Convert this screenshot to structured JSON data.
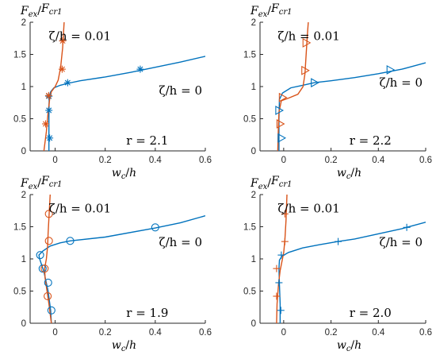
{
  "colors": {
    "blue": "#0072BD",
    "orange": "#D95319",
    "axis": "#262626"
  },
  "chart_data": [
    {
      "type": "line",
      "xlabel": "w_c/h",
      "ylabel": "F_ex/F_cr1",
      "xlim": [
        -0.1,
        0.6
      ],
      "ylim": [
        0,
        2
      ],
      "xticks": [
        0,
        0.2,
        0.4,
        0.6
      ],
      "yticks": [
        0,
        0.5,
        1,
        1.5,
        2
      ],
      "xtick_labels": [
        "0",
        "0.2",
        "0.4",
        "0.6"
      ],
      "ytick_labels": [
        "0",
        "0.5",
        "1",
        "1.5",
        "2"
      ],
      "marker": "asterisk",
      "annotation_r": "r = 2.1",
      "label_blue": "ζ/h = 0",
      "label_orange": "ζ/h = 0.01",
      "series": [
        {
          "color_key": "blue",
          "line": [
            [
              -0.025,
              0
            ],
            [
              -0.025,
              0.5
            ],
            [
              -0.024,
              0.8
            ],
            [
              -0.018,
              0.92
            ],
            [
              -0.005,
              0.98
            ],
            [
              0.02,
              1.02
            ],
            [
              0.05,
              1.05
            ],
            [
              0.1,
              1.09
            ],
            [
              0.2,
              1.15
            ],
            [
              0.3,
              1.22
            ],
            [
              0.4,
              1.3
            ],
            [
              0.5,
              1.38
            ],
            [
              0.6,
              1.47
            ]
          ],
          "markers": [
            [
              -0.022,
              0.2
            ],
            [
              -0.025,
              0.63
            ],
            [
              -0.025,
              0.85
            ],
            [
              0.05,
              1.06
            ],
            [
              0.34,
              1.27
            ]
          ]
        },
        {
          "color_key": "orange",
          "line": [
            [
              -0.045,
              0
            ],
            [
              -0.035,
              0.3
            ],
            [
              -0.028,
              0.6
            ],
            [
              -0.022,
              0.8
            ],
            [
              -0.015,
              0.92
            ],
            [
              0,
              1.0
            ],
            [
              0.012,
              1.1
            ],
            [
              0.022,
              1.3
            ],
            [
              0.03,
              1.6
            ],
            [
              0.036,
              2.0
            ]
          ],
          "markers": [
            [
              -0.038,
              0.42
            ],
            [
              -0.026,
              0.86
            ],
            [
              0.028,
              1.27
            ],
            [
              0.03,
              1.71
            ]
          ]
        }
      ]
    },
    {
      "type": "line",
      "xlabel": "w_c/h",
      "ylabel": "F_ex/F_cr1",
      "xlim": [
        -0.1,
        0.6
      ],
      "ylim": [
        0,
        2
      ],
      "xticks": [
        0,
        0.2,
        0.4,
        0.6
      ],
      "yticks": [
        0,
        0.5,
        1,
        1.5,
        2
      ],
      "xtick_labels": [
        "0",
        "0.2",
        "0.4",
        "0.6"
      ],
      "ytick_labels": [
        "0",
        "0.5",
        "1",
        "1.5",
        "2"
      ],
      "marker": "triangle-right",
      "annotation_r": "r = 2.2",
      "label_blue": "ζ/h = 0",
      "label_orange": "ζ/h = 0.01",
      "series": [
        {
          "color_key": "blue",
          "line": [
            [
              -0.02,
              0
            ],
            [
              -0.02,
              0.5
            ],
            [
              -0.018,
              0.8
            ],
            [
              -0.005,
              0.9
            ],
            [
              0.03,
              0.98
            ],
            [
              0.08,
              1.02
            ],
            [
              0.13,
              1.06
            ],
            [
              0.2,
              1.09
            ],
            [
              0.3,
              1.14
            ],
            [
              0.4,
              1.2
            ],
            [
              0.5,
              1.27
            ],
            [
              0.6,
              1.37
            ]
          ],
          "markers": [
            [
              -0.01,
              0.2
            ],
            [
              -0.02,
              0.63
            ],
            [
              0.13,
              1.06
            ],
            [
              0.45,
              1.26
            ]
          ]
        },
        {
          "color_key": "orange",
          "line": [
            [
              -0.025,
              0
            ],
            [
              -0.023,
              0.3
            ],
            [
              -0.02,
              0.6
            ],
            [
              -0.01,
              0.78
            ],
            [
              0.02,
              0.82
            ],
            [
              0.06,
              0.88
            ],
            [
              0.082,
              1.0
            ],
            [
              0.09,
              1.2
            ],
            [
              0.095,
              1.5
            ],
            [
              0.1,
              1.8
            ],
            [
              0.104,
              2.0
            ]
          ],
          "markers": [
            [
              -0.015,
              0.42
            ],
            [
              -0.005,
              0.83
            ],
            [
              0.09,
              1.25
            ],
            [
              0.095,
              1.68
            ]
          ]
        }
      ]
    },
    {
      "type": "line",
      "xlabel": "w_c/h",
      "ylabel": "F_ex/F_cr1",
      "xlim": [
        -0.1,
        0.6
      ],
      "ylim": [
        0,
        2
      ],
      "xticks": [
        0,
        0.2,
        0.4,
        0.6
      ],
      "yticks": [
        0,
        0.5,
        1,
        1.5,
        2
      ],
      "xtick_labels": [
        "0",
        "0.2",
        "0.4",
        "0.6"
      ],
      "ytick_labels": [
        "0",
        "0.5",
        "1",
        "1.5",
        "2"
      ],
      "marker": "circle",
      "annotation_r": "r = 1.9",
      "label_blue": "ζ/h = 0",
      "label_orange": "ζ/h = 0.01",
      "series": [
        {
          "color_key": "blue",
          "line": [
            [
              -0.015,
              0
            ],
            [
              -0.018,
              0.2
            ],
            [
              -0.028,
              0.5
            ],
            [
              -0.045,
              0.8
            ],
            [
              -0.062,
              1.0
            ],
            [
              -0.065,
              1.06
            ],
            [
              -0.05,
              1.12
            ],
            [
              -0.02,
              1.2
            ],
            [
              0.02,
              1.25
            ],
            [
              0.06,
              1.28
            ],
            [
              0.2,
              1.34
            ],
            [
              0.4,
              1.48
            ],
            [
              0.5,
              1.56
            ],
            [
              0.6,
              1.67
            ]
          ],
          "markers": [
            [
              -0.015,
              0.2
            ],
            [
              -0.028,
              0.63
            ],
            [
              -0.05,
              0.85
            ],
            [
              -0.06,
              1.06
            ],
            [
              0.06,
              1.28
            ],
            [
              0.4,
              1.49
            ]
          ]
        },
        {
          "color_key": "orange",
          "line": [
            [
              -0.015,
              0
            ],
            [
              -0.025,
              0.3
            ],
            [
              -0.04,
              0.7
            ],
            [
              -0.042,
              0.85
            ],
            [
              -0.035,
              1.0
            ],
            [
              -0.03,
              1.2
            ],
            [
              -0.028,
              1.4
            ],
            [
              -0.024,
              1.7
            ],
            [
              -0.02,
              2.0
            ]
          ],
          "markers": [
            [
              -0.03,
              0.42
            ],
            [
              -0.042,
              0.85
            ],
            [
              -0.025,
              1.28
            ],
            [
              -0.025,
              1.7
            ]
          ]
        }
      ]
    },
    {
      "type": "line",
      "xlabel": "w_c/h",
      "ylabel": "F_ex/F_cr1",
      "xlim": [
        -0.1,
        0.6
      ],
      "ylim": [
        0,
        2
      ],
      "xticks": [
        0,
        0.2,
        0.4,
        0.6
      ],
      "yticks": [
        0,
        0.5,
        1,
        1.5,
        2
      ],
      "xtick_labels": [
        "0",
        "0.2",
        "0.4",
        "0.6"
      ],
      "ytick_labels": [
        "0",
        "0.5",
        "1",
        "1.5",
        "2"
      ],
      "marker": "plus",
      "annotation_r": "r = 2.0",
      "label_blue": "ζ/h = 0",
      "label_orange": "ζ/h = 0.01",
      "series": [
        {
          "color_key": "blue",
          "line": [
            [
              -0.015,
              0
            ],
            [
              -0.015,
              0.3
            ],
            [
              -0.018,
              0.6
            ],
            [
              -0.02,
              0.85
            ],
            [
              -0.018,
              0.98
            ],
            [
              -0.008,
              1.04
            ],
            [
              0.02,
              1.1
            ],
            [
              0.08,
              1.17
            ],
            [
              0.15,
              1.22
            ],
            [
              0.23,
              1.27
            ],
            [
              0.3,
              1.31
            ],
            [
              0.4,
              1.39
            ],
            [
              0.5,
              1.47
            ],
            [
              0.6,
              1.57
            ]
          ],
          "markers": [
            [
              -0.012,
              0.2
            ],
            [
              -0.02,
              0.63
            ],
            [
              -0.01,
              1.06
            ],
            [
              0.23,
              1.27
            ],
            [
              0.52,
              1.49
            ]
          ]
        },
        {
          "color_key": "orange",
          "line": [
            [
              -0.03,
              0
            ],
            [
              -0.028,
              0.3
            ],
            [
              -0.022,
              0.6
            ],
            [
              -0.015,
              0.82
            ],
            [
              -0.008,
              0.95
            ],
            [
              0,
              1.1
            ],
            [
              0.005,
              1.3
            ],
            [
              0.01,
              1.6
            ],
            [
              0.014,
              2.0
            ]
          ],
          "markers": [
            [
              -0.03,
              0.42
            ],
            [
              -0.03,
              0.85
            ],
            [
              0.005,
              1.27
            ],
            [
              0.005,
              1.7
            ]
          ]
        }
      ]
    }
  ]
}
